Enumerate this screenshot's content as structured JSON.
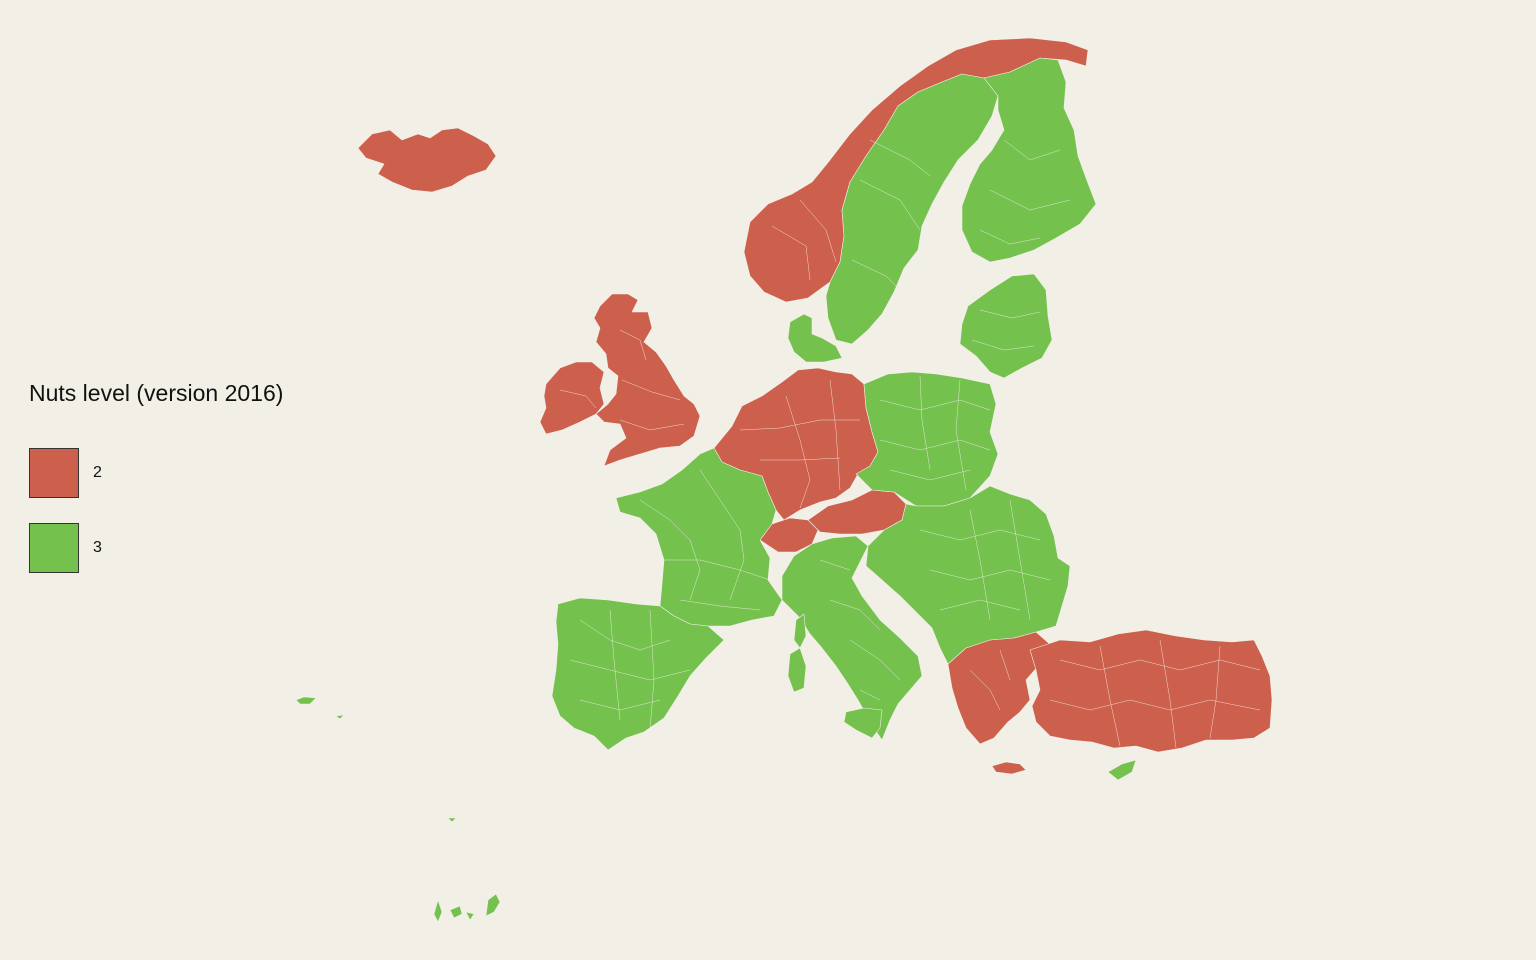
{
  "legend": {
    "title": "Nuts level (version 2016)",
    "items": [
      {
        "label": "2",
        "color": "#cd5f4d"
      },
      {
        "label": "3",
        "color": "#74c14e"
      }
    ]
  },
  "regions": [
    {
      "name": "Iceland",
      "level": "2"
    },
    {
      "name": "Norway",
      "level": "2"
    },
    {
      "name": "Sweden",
      "level": "3"
    },
    {
      "name": "Finland",
      "level": "3"
    },
    {
      "name": "Estonia-Latvia-Lithuania",
      "level": "3"
    },
    {
      "name": "Denmark",
      "level": "3"
    },
    {
      "name": "United Kingdom",
      "level": "2"
    },
    {
      "name": "Ireland",
      "level": "2"
    },
    {
      "name": "Germany",
      "level": "2"
    },
    {
      "name": "Switzerland",
      "level": "2"
    },
    {
      "name": "Austria",
      "level": "2"
    },
    {
      "name": "Poland-Czechia",
      "level": "3"
    },
    {
      "name": "France",
      "level": "3"
    },
    {
      "name": "Iberian Peninsula",
      "level": "3"
    },
    {
      "name": "Italy",
      "level": "3"
    },
    {
      "name": "Balkans-Romania-Bulgaria",
      "level": "3"
    },
    {
      "name": "Greece",
      "level": "2"
    },
    {
      "name": "Turkey",
      "level": "2"
    },
    {
      "name": "Cyprus",
      "level": "3"
    },
    {
      "name": "Corsica-Sardinia",
      "level": "3"
    },
    {
      "name": "Sicily",
      "level": "3"
    },
    {
      "name": "Crete",
      "level": "2"
    },
    {
      "name": "Atlantic islands",
      "level": "3"
    }
  ]
}
